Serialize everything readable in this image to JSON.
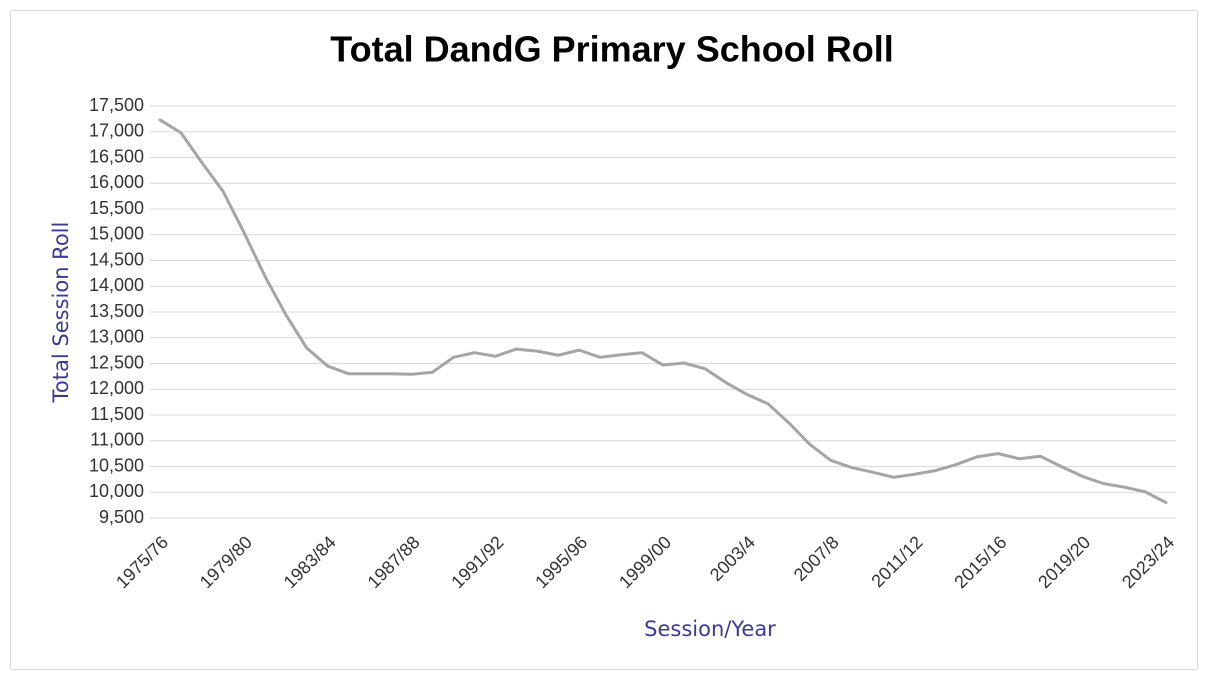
{
  "chart_data": {
    "type": "line",
    "title": "Total DandG Primary School Roll",
    "x_label": "Session/Year",
    "y_label": "Total Session Roll",
    "categories": [
      "1975/76",
      null,
      null,
      null,
      "1979/80",
      null,
      null,
      null,
      "1983/84",
      null,
      null,
      null,
      "1987/88",
      null,
      null,
      null,
      "1991/92",
      null,
      null,
      null,
      "1995/96",
      null,
      null,
      null,
      "1999/00",
      null,
      null,
      null,
      "2003/4",
      null,
      null,
      null,
      "2007/8",
      null,
      null,
      null,
      "2011/12",
      null,
      null,
      null,
      "2015/16",
      null,
      null,
      null,
      "2019/20",
      null,
      null,
      null,
      "2023/24"
    ],
    "series": [
      {
        "name": "Total Session Roll",
        "color": "#a5a5a5",
        "values": [
          17230,
          16980,
          16400,
          15850,
          15050,
          14200,
          13450,
          12800,
          12450,
          12300,
          12300,
          12300,
          12290,
          12330,
          12620,
          12710,
          12640,
          12780,
          12740,
          12660,
          12760,
          12620,
          12670,
          12710,
          12470,
          12510,
          12400,
          12130,
          11900,
          11720,
          11350,
          10930,
          10620,
          10480,
          10390,
          10290,
          10350,
          10420,
          10540,
          10690,
          10750,
          10650,
          10700,
          10500,
          10310,
          10170,
          10100,
          10010,
          9800
        ]
      }
    ],
    "ylim": [
      9500,
      17500
    ],
    "yticks": [
      {
        "value": 9500,
        "label": "9,500"
      },
      {
        "value": 10000,
        "label": "10,000"
      },
      {
        "value": 10500,
        "label": "10,500"
      },
      {
        "value": 11000,
        "label": "11,000"
      },
      {
        "value": 11500,
        "label": "11,500"
      },
      {
        "value": 12000,
        "label": "12,000"
      },
      {
        "value": 12500,
        "label": "12,500"
      },
      {
        "value": 13000,
        "label": "13,000"
      },
      {
        "value": 13500,
        "label": "13,500"
      },
      {
        "value": 14000,
        "label": "14,000"
      },
      {
        "value": 14500,
        "label": "14,500"
      },
      {
        "value": 15000,
        "label": "15,000"
      },
      {
        "value": 15500,
        "label": "15,500"
      },
      {
        "value": 16000,
        "label": "16,000"
      },
      {
        "value": 16500,
        "label": "16,500"
      },
      {
        "value": 17000,
        "label": "17,000"
      },
      {
        "value": 17500,
        "label": "17,500"
      }
    ],
    "grid": true
  }
}
